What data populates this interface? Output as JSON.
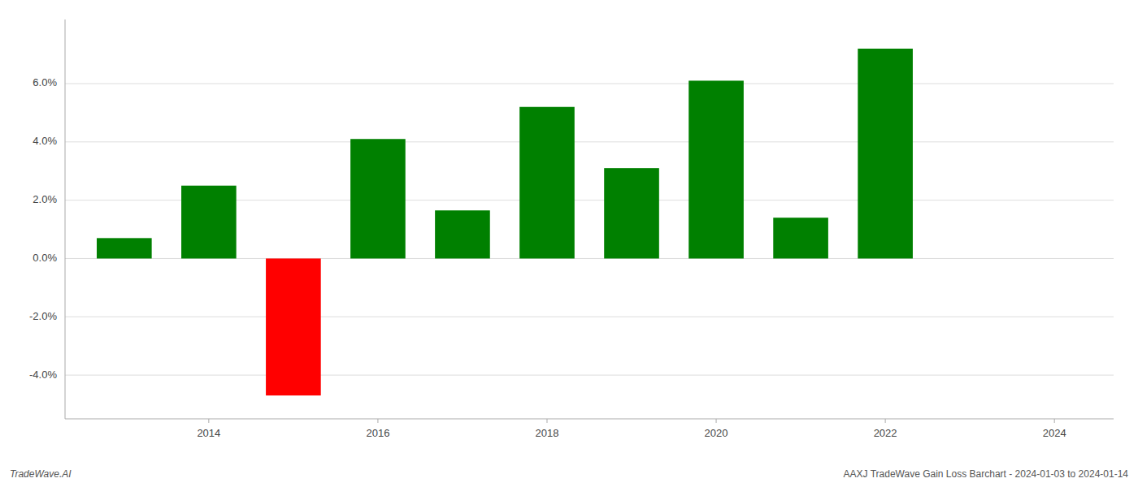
{
  "chart_data": {
    "type": "bar",
    "x": [
      2013,
      2014,
      2015,
      2016,
      2017,
      2018,
      2019,
      2020,
      2021,
      2022,
      2023
    ],
    "values": [
      0.007,
      0.025,
      -0.047,
      0.041,
      0.0165,
      0.052,
      0.031,
      0.061,
      0.014,
      0.072,
      0.0
    ],
    "colors": [
      "#008000",
      "#008000",
      "#ff0000",
      "#008000",
      "#008000",
      "#008000",
      "#008000",
      "#008000",
      "#008000",
      "#008000",
      "#008000"
    ],
    "xlim": [
      2012.3,
      2024.7
    ],
    "xticks": [
      2014,
      2016,
      2018,
      2020,
      2022,
      2024
    ],
    "ylim": [
      -0.055,
      0.082
    ],
    "yticks": [
      {
        "value": -0.04,
        "label": "-4.0%"
      },
      {
        "value": -0.02,
        "label": "-2.0%"
      },
      {
        "value": 0.0,
        "label": "0.0%"
      },
      {
        "value": 0.02,
        "label": "2.0%"
      },
      {
        "value": 0.04,
        "label": "4.0%"
      },
      {
        "value": 0.06,
        "label": "6.0%"
      }
    ],
    "grid": true,
    "annotations": [
      "TradeWave.AI",
      "AAXJ TradeWave Gain Loss Barchart - 2024-01-03 to 2024-01-14"
    ]
  }
}
